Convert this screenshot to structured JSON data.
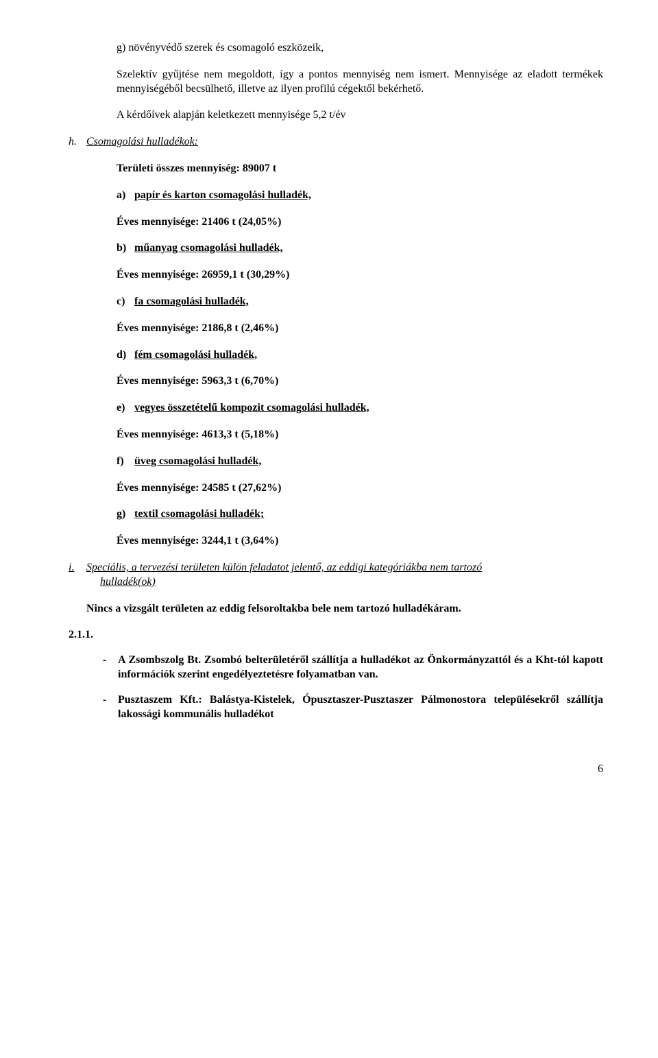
{
  "g": {
    "title": "g) növényvédő szerek és csomagoló eszközeik,",
    "body1": "Szelektív gyűjtése nem megoldott, így a pontos mennyiség nem ismert. Mennyisége az eladott termékek mennyiségéből becsülhető, illetve az ilyen profilú cégektől bekérhető.",
    "body2": "A kérdőívek alapján keletkezett mennyisége 5,2 t/év"
  },
  "h": {
    "label": "h.",
    "title": "Csomagolási hulladékok:",
    "total": "Területi összes mennyiség: 89007 t",
    "items": [
      {
        "letter": "a)",
        "title": "papír és karton csomagolási hulladék,",
        "qty": "Éves mennyisége: 21406 t (24,05%)"
      },
      {
        "letter": "b)",
        "title": "műanyag csomagolási hulladék,",
        "qty": "Éves mennyisége: 26959,1 t (30,29%)"
      },
      {
        "letter": "c)",
        "title": "fa csomagolási hulladék,",
        "qty": "Éves mennyisége: 2186,8 t (2,46%)"
      },
      {
        "letter": "d)",
        "title": "fém csomagolási hulladék,",
        "qty": "Éves mennyisége: 5963,3 t (6,70%)"
      },
      {
        "letter": "e)",
        "title": "vegyes összetételű kompozit csomagolási hulladék,",
        "qty": "Éves mennyisége: 4613,3 t (5,18%)"
      },
      {
        "letter": "f)",
        "title": "üveg csomagolási hulladék,",
        "qty": "Éves mennyisége: 24585 t (27,62%)"
      },
      {
        "letter": "g)",
        "title": "textil csomagolási hulladék;",
        "qty": "Éves mennyisége: 3244,1 t (3,64%)"
      }
    ]
  },
  "i": {
    "label": "i.",
    "title_line1": "Speciális, a tervezési területen külön feladatot jelentő, az eddigi kategóriákba nem tartozó",
    "title_line2": "hulladék(ok)",
    "nincs": "Nincs a vizsgált területen az eddig felsoroltakba bele nem tartozó hulladékáram."
  },
  "section": {
    "num": "2.1.1.",
    "dash1": "A Zsombszolg Bt. Zsombó belterületéről szállítja a hulladékot az Önkormányzattól és a Kht-tól kapott információk szerint engedélyeztetésre folyamatban van.",
    "dash2": "Pusztaszem Kft.: Balástya-Kistelek, Ópusztaszer-Pusztaszer Pálmonostora településekről szállítja lakossági kommunális hulladékot"
  },
  "page": "6"
}
